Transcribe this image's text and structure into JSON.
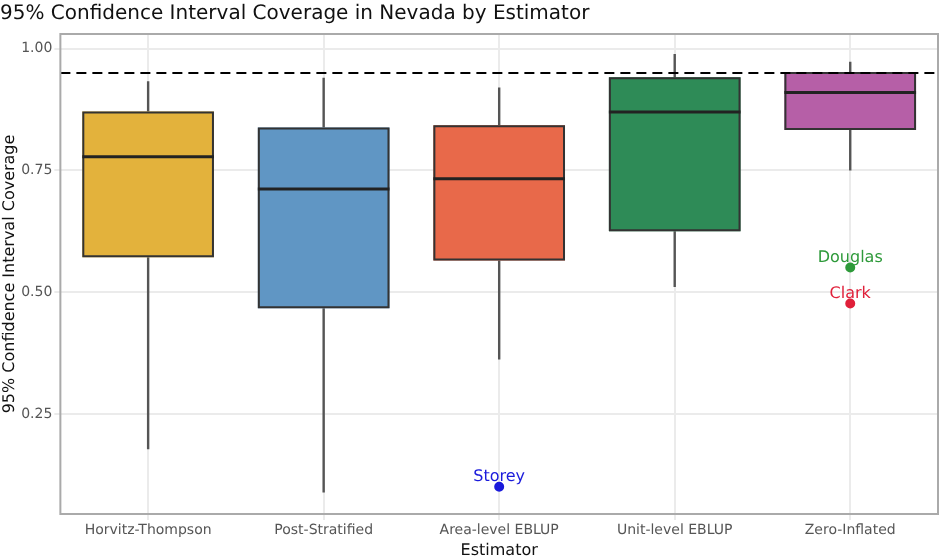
{
  "chart_data": {
    "type": "box",
    "title": "95% Confidence Interval Coverage in Nevada by Estimator",
    "xlabel": "Estimator",
    "ylabel": "95% Confidence Interval Coverage",
    "categories": [
      "Horvitz-Thompson",
      "Post-Stratified",
      "Area-level EBLUP",
      "Unit-level EBLUP",
      "Zero-Inflated"
    ],
    "colors": [
      "#e3b23c",
      "#6096c4",
      "#e8694a",
      "#2e8b57",
      "#b65fa7"
    ],
    "boxes": [
      {
        "low": 0.178,
        "q1": 0.572,
        "median": 0.778,
        "q3": 0.871,
        "high": 0.933
      },
      {
        "low": 0.089,
        "q1": 0.467,
        "median": 0.712,
        "q3": 0.838,
        "high": 0.94
      },
      {
        "low": 0.362,
        "q1": 0.565,
        "median": 0.733,
        "q3": 0.843,
        "high": 0.92
      },
      {
        "low": 0.511,
        "q1": 0.625,
        "median": 0.87,
        "q3": 0.941,
        "high": 0.989
      },
      {
        "low": 0.75,
        "q1": 0.833,
        "median": 0.91,
        "q3": 0.952,
        "high": 0.973
      }
    ],
    "series": [
      {
        "type": "scatter",
        "x": [
          "Area-level EBLUP",
          "Zero-Inflated",
          "Zero-Inflated"
        ],
        "values": [
          0.101,
          0.551,
          0.477
        ],
        "colors": [
          "#1a1adb",
          "#2e9a3a",
          "#e0203a"
        ],
        "value_labels": [
          "Storey",
          "Douglas",
          "Clark"
        ]
      }
    ],
    "ylim": [
      0.045,
      1.03
    ],
    "yticks": [
      {
        "value": 0.25,
        "label": "0.25"
      },
      {
        "value": 0.5,
        "label": "0.50"
      },
      {
        "value": 0.75,
        "label": "0.75"
      },
      {
        "value": 1,
        "label": "1.00"
      }
    ],
    "ref_lines": [
      {
        "axis": "y",
        "value": 0.95,
        "color": "#000000",
        "line_style": "dashed"
      }
    ],
    "grid": true,
    "legend": false,
    "marker": "circle"
  }
}
